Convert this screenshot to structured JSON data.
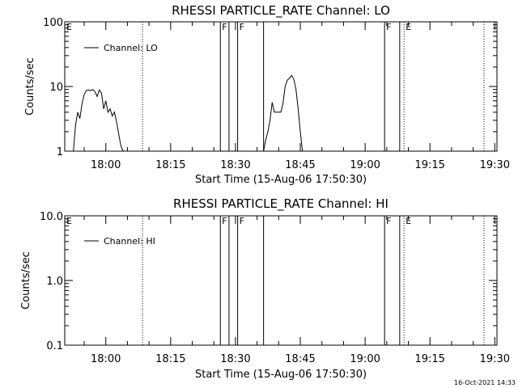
{
  "footer": {
    "timestamp": "16-Oct-2021 14:33"
  },
  "markers": {
    "solid": [
      "18:26:30",
      "18:28:30",
      "18:30:30",
      "18:36:30",
      "19:04:30",
      "19:08:00"
    ],
    "dotted": [
      "18:08:30",
      "19:09:00",
      "19:27:30"
    ],
    "labels": [
      {
        "time": "17:50:30",
        "text": "E"
      },
      {
        "time": "18:26:30",
        "text": "F"
      },
      {
        "time": "18:30:30",
        "text": "F"
      },
      {
        "time": "19:04:30",
        "text": "F"
      },
      {
        "time": "19:09:00",
        "text": "E"
      }
    ]
  },
  "chart_data": [
    {
      "type": "line",
      "title": "RHESSI PARTICLE_RATE Channel: LO",
      "xlabel": "Start Time (15-Aug-06 17:50:30)",
      "ylabel": "Counts/sec",
      "yscale": "log",
      "ylim": [
        1,
        100
      ],
      "xlim": [
        "17:50:30",
        "19:30:30"
      ],
      "yticks": [
        "1",
        "10",
        "100"
      ],
      "xticks": [
        "18:00",
        "18:15",
        "18:30",
        "18:45",
        "19:00",
        "19:15",
        "19:30"
      ],
      "legend": "top-left",
      "grid": false,
      "series": [
        {
          "name": "Channel: LO",
          "x": [
            "17:52:30",
            "17:53:00",
            "17:53:30",
            "17:54:00",
            "17:54:30",
            "17:55:00",
            "17:55:30",
            "17:56:00",
            "17:56:30",
            "17:57:00",
            "17:57:30",
            "17:58:00",
            "17:58:30",
            "17:59:00",
            "17:59:30",
            "18:00:00",
            "18:00:30",
            "18:01:00",
            "18:01:30",
            "18:02:00",
            "18:02:30",
            "18:03:00",
            "18:03:30",
            "18:04:00",
            "18:36:30",
            "18:37:00",
            "18:37:30",
            "18:38:00",
            "18:38:30",
            "18:39:00",
            "18:39:30",
            "18:40:00",
            "18:40:30",
            "18:41:00",
            "18:41:30",
            "18:42:00",
            "18:42:30",
            "18:43:00",
            "18:43:30",
            "18:44:00",
            "18:44:30",
            "18:45:00",
            "18:45:30"
          ],
          "values": [
            1,
            2.5,
            4,
            3.2,
            5.5,
            7.5,
            8.7,
            8.8,
            8.6,
            9.0,
            8.3,
            7.0,
            8.8,
            7.9,
            4.5,
            6.0,
            4.0,
            4.5,
            3.5,
            4.0,
            2.8,
            1.8,
            1.2,
            1,
            1,
            1.5,
            2.0,
            3.0,
            5.7,
            4.0,
            4.0,
            4.0,
            4.0,
            5.5,
            10.0,
            12.5,
            13.5,
            14.8,
            13.0,
            9.0,
            4.5,
            2.0,
            1
          ]
        }
      ]
    },
    {
      "type": "line",
      "title": "RHESSI PARTICLE_RATE Channel: HI",
      "xlabel": "Start Time (15-Aug-06 17:50:30)",
      "ylabel": "Counts/sec",
      "yscale": "log",
      "ylim": [
        0.1,
        10
      ],
      "xlim": [
        "17:50:30",
        "19:30:30"
      ],
      "yticks": [
        "0.1",
        "1.0",
        "10.0"
      ],
      "xticks": [
        "18:00",
        "18:15",
        "18:30",
        "18:45",
        "19:00",
        "19:15",
        "19:30"
      ],
      "legend": "top-left",
      "grid": false,
      "series": [
        {
          "name": "Channel: HI",
          "x": [],
          "values": []
        }
      ]
    }
  ]
}
